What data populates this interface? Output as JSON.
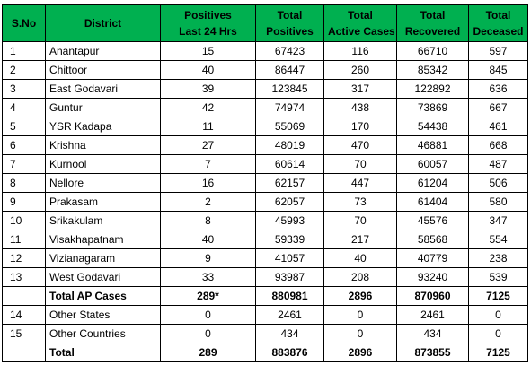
{
  "table": {
    "header": [
      [
        "S.No"
      ],
      [
        "District"
      ],
      [
        "Positives",
        "Last 24 Hrs"
      ],
      [
        "Total",
        "Positives"
      ],
      [
        "Total",
        "Active Cases"
      ],
      [
        "Total",
        "Recovered"
      ],
      [
        "Total",
        "Deceased"
      ]
    ],
    "rows": [
      [
        1,
        "Anantapur",
        15,
        67423,
        116,
        66710,
        597
      ],
      [
        2,
        "Chittoor",
        40,
        86447,
        260,
        85342,
        845
      ],
      [
        3,
        "East Godavari",
        39,
        123845,
        317,
        122892,
        636
      ],
      [
        4,
        "Guntur",
        42,
        74974,
        438,
        73869,
        667
      ],
      [
        5,
        "YSR Kadapa",
        11,
        55069,
        170,
        54438,
        461
      ],
      [
        6,
        "Krishna",
        27,
        48019,
        470,
        46881,
        668
      ],
      [
        7,
        "Kurnool",
        7,
        60614,
        70,
        60057,
        487
      ],
      [
        8,
        "Nellore",
        16,
        62157,
        447,
        61204,
        506
      ],
      [
        9,
        "Prakasam",
        2,
        62057,
        73,
        61404,
        580
      ],
      [
        10,
        "Srikakulam",
        8,
        45993,
        70,
        45576,
        347
      ],
      [
        11,
        "Visakhapatnam",
        40,
        59339,
        217,
        58568,
        554
      ],
      [
        12,
        "Vizianagaram",
        9,
        41057,
        40,
        40779,
        238
      ],
      [
        13,
        "West Godavari",
        33,
        93987,
        208,
        93240,
        539
      ],
      [
        null,
        "Total AP Cases",
        "289*",
        880981,
        2896,
        870960,
        7125
      ],
      [
        14,
        "Other States",
        0,
        2461,
        0,
        2461,
        0
      ],
      [
        15,
        "Other Countries",
        0,
        434,
        0,
        434,
        0
      ],
      [
        null,
        "Total",
        289,
        883876,
        2896,
        873855,
        7125
      ]
    ]
  }
}
